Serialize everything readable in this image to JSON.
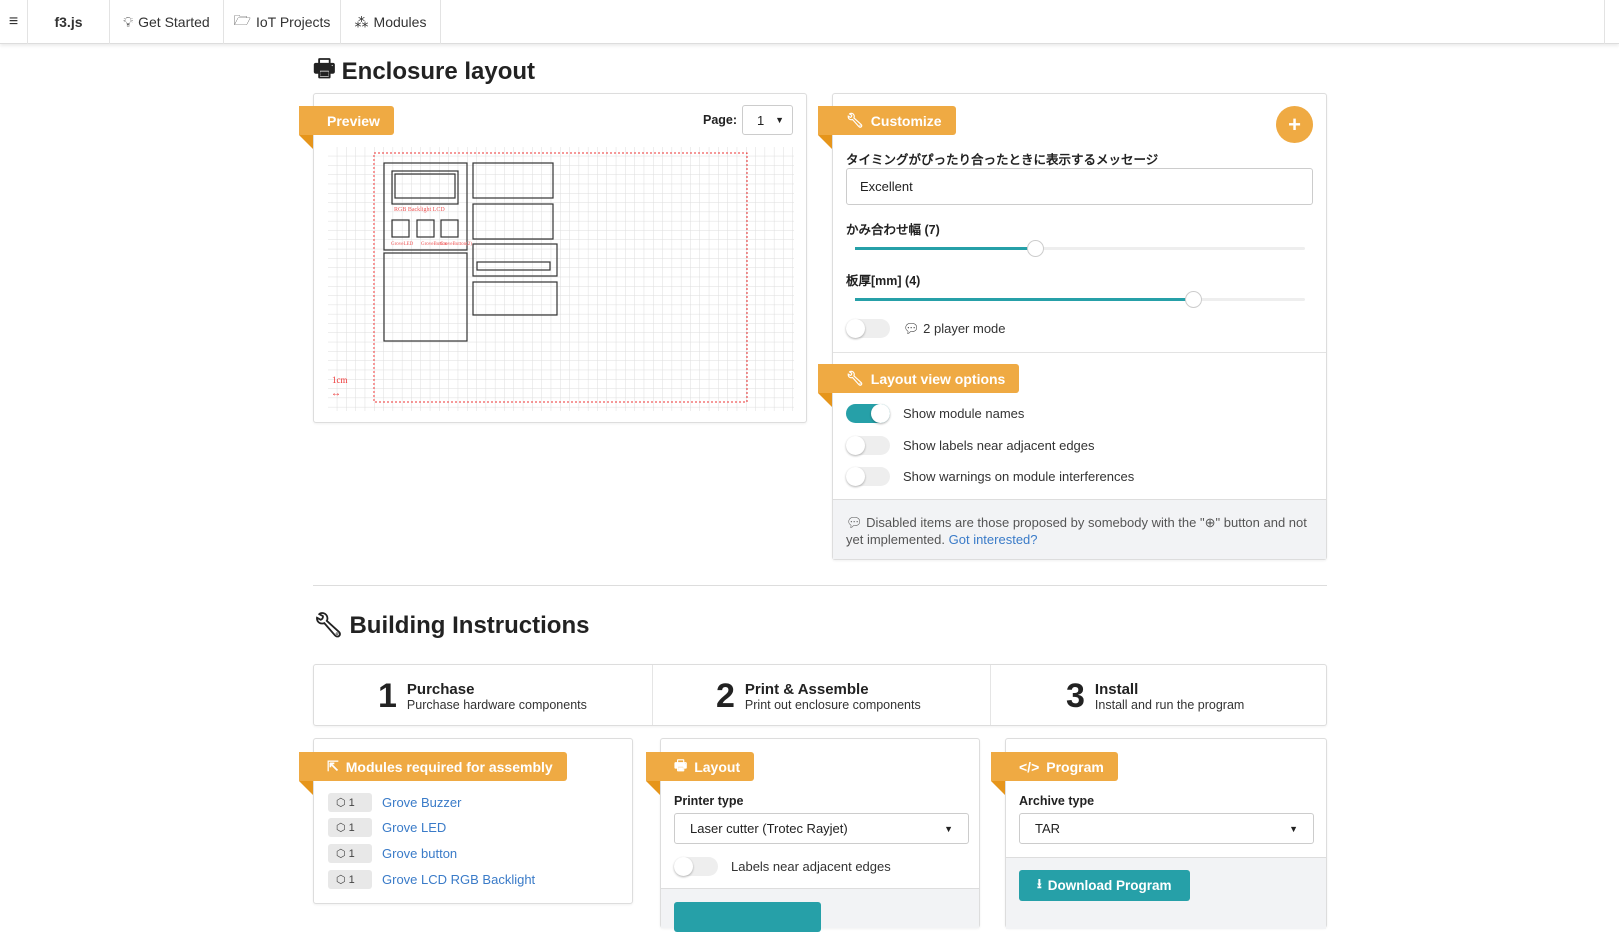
{
  "nav": {
    "menu_icon": "hamburger-icon",
    "brand": "f3.js",
    "items": [
      {
        "label": "Get Started",
        "icon": "lightbulb-icon"
      },
      {
        "label": "IoT Projects",
        "icon": "folder-open-icon"
      },
      {
        "label": "Modules",
        "icon": "cubes-icon"
      }
    ]
  },
  "enclosure": {
    "title": "Enclosure layout",
    "preview": {
      "ribbon": "Preview",
      "page_label": "Page:",
      "page_value": "1",
      "scale_label": "1cm",
      "module_labels": [
        "RGB Backlight LCD",
        "GroveLED",
        "GroveButton",
        "GroveButton(2)"
      ]
    }
  },
  "customize": {
    "ribbon": "Customize",
    "add_button": "+",
    "message_label": "タイミングがぴったり合ったときに表示するメッセージ",
    "message_value": "Excellent",
    "slider1": {
      "label": "かみ合わせ幅 (7)",
      "value": 7,
      "fraction": 0.4
    },
    "slider2": {
      "label": "板厚[mm] (4)",
      "value": 4,
      "fraction": 0.75
    },
    "two_player": {
      "label": "2 player mode",
      "on": false
    }
  },
  "layout_options": {
    "ribbon": "Layout view options",
    "items": [
      {
        "label": "Show module names",
        "on": true
      },
      {
        "label": "Show labels near adjacent edges",
        "on": false
      },
      {
        "label": "Show warnings on module interferences",
        "on": false
      }
    ],
    "note_before": "Disabled items are those proposed by somebody with the \"",
    "note_after": "\" button and not yet implemented.",
    "note_link": "Got interested?"
  },
  "building": {
    "title": "Building Instructions",
    "steps": [
      {
        "num": "1",
        "title": "Purchase",
        "sub": "Purchase hardware components"
      },
      {
        "num": "2",
        "title": "Print & Assemble",
        "sub": "Print out enclosure components"
      },
      {
        "num": "3",
        "title": "Install",
        "sub": "Install and run the program"
      }
    ]
  },
  "modules": {
    "ribbon": "Modules required for assembly",
    "items": [
      {
        "count": "1",
        "name": "Grove Buzzer"
      },
      {
        "count": "1",
        "name": "Grove LED"
      },
      {
        "count": "1",
        "name": "Grove button"
      },
      {
        "count": "1",
        "name": "Grove LCD RGB Backlight"
      }
    ]
  },
  "layout": {
    "ribbon": "Layout",
    "printer_label": "Printer type",
    "printer_value": "Laser cutter (Trotec Rayjet)",
    "labels_toggle": "Labels near adjacent edges"
  },
  "program": {
    "ribbon": "Program",
    "archive_label": "Archive type",
    "archive_value": "TAR",
    "download": "Download Program"
  },
  "colors": {
    "accent": "#efaa43",
    "teal": "#26a0a8",
    "link": "#3a7bc8"
  }
}
